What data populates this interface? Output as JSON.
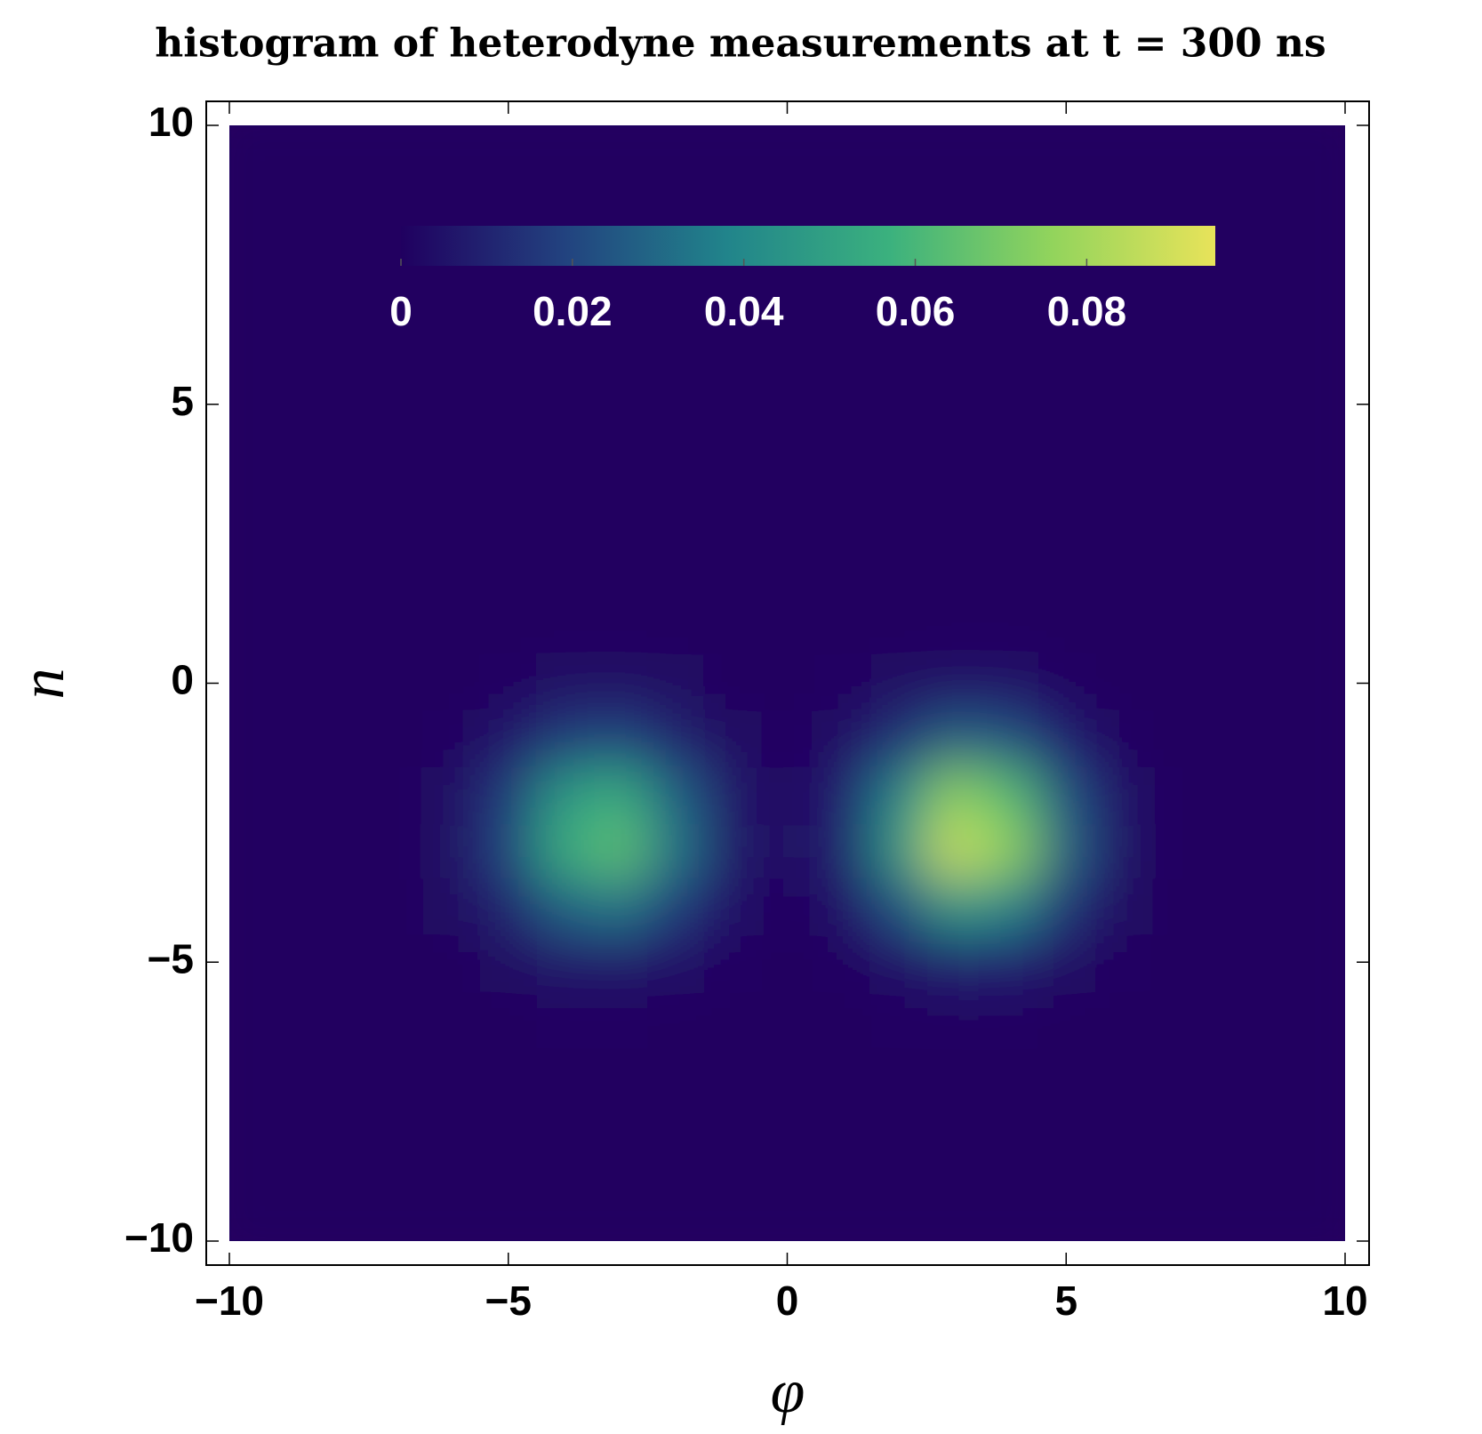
{
  "chart_data": {
    "type": "density",
    "title": "histogram of heterodyne measurements at t = 300 ns",
    "xlabel": "φ",
    "ylabel": "n",
    "x": [
      -10,
      -9,
      -8,
      -7,
      -6,
      -5,
      -4,
      -3,
      -2,
      -1,
      0,
      1,
      2,
      3,
      4,
      5,
      6,
      7,
      8,
      9,
      10
    ],
    "y": [
      -10,
      -9,
      -8,
      -7,
      -6,
      -5,
      -4,
      -3,
      -2,
      -1,
      0,
      1,
      2,
      3,
      4,
      5,
      6,
      7,
      8,
      9,
      10
    ],
    "z": [
      [
        0,
        0,
        0,
        0,
        0,
        0,
        0,
        0,
        0,
        0,
        0,
        0,
        0,
        0,
        0,
        0,
        0,
        0,
        0,
        0,
        0
      ],
      [
        0,
        0,
        0,
        0,
        0,
        0,
        0,
        0,
        0,
        0,
        0,
        0,
        0,
        0,
        0,
        0,
        0,
        0,
        0,
        0,
        0
      ],
      [
        0,
        0,
        0,
        0,
        0,
        0,
        0,
        0,
        0,
        0,
        0,
        0,
        0,
        0,
        0,
        0,
        0,
        0,
        0,
        0,
        0
      ],
      [
        0,
        0,
        0,
        0,
        0,
        0,
        0,
        0,
        0,
        0,
        0,
        0,
        0,
        0,
        0,
        0,
        0,
        0,
        0,
        0,
        0
      ],
      [
        0,
        0,
        0,
        0,
        0,
        0,
        0.001,
        0.001,
        0,
        0,
        0,
        0,
        0.001,
        0.001,
        0.001,
        0,
        0,
        0,
        0,
        0,
        0
      ],
      [
        0,
        0,
        0,
        0,
        0,
        0.002,
        0.006,
        0.007,
        0.004,
        0.001,
        0,
        0.001,
        0.005,
        0.01,
        0.009,
        0.003,
        0.001,
        0,
        0,
        0,
        0
      ],
      [
        0,
        0,
        0,
        0,
        0.002,
        0.01,
        0.028,
        0.033,
        0.017,
        0.004,
        0.001,
        0.005,
        0.023,
        0.045,
        0.038,
        0.014,
        0.002,
        0,
        0,
        0,
        0
      ],
      [
        0,
        0,
        0,
        0,
        0.003,
        0.02,
        0.055,
        0.065,
        0.033,
        0.007,
        0.002,
        0.01,
        0.045,
        0.088,
        0.075,
        0.027,
        0.004,
        0,
        0,
        0,
        0
      ],
      [
        0,
        0,
        0,
        0,
        0.003,
        0.017,
        0.047,
        0.055,
        0.028,
        0.006,
        0.001,
        0.009,
        0.038,
        0.075,
        0.063,
        0.023,
        0.004,
        0,
        0,
        0,
        0
      ],
      [
        0,
        0,
        0,
        0,
        0.001,
        0.006,
        0.017,
        0.02,
        0.01,
        0.002,
        0.001,
        0.003,
        0.014,
        0.027,
        0.023,
        0.009,
        0.001,
        0,
        0,
        0,
        0
      ],
      [
        0,
        0,
        0,
        0,
        0,
        0.001,
        0.003,
        0.003,
        0.002,
        0,
        0,
        0.001,
        0.002,
        0.004,
        0.004,
        0.001,
        0,
        0,
        0,
        0,
        0
      ],
      [
        0,
        0,
        0,
        0,
        0,
        0,
        0,
        0,
        0,
        0,
        0,
        0,
        0,
        0,
        0,
        0,
        0,
        0,
        0,
        0,
        0
      ],
      [
        0,
        0,
        0,
        0,
        0,
        0,
        0,
        0,
        0,
        0,
        0,
        0,
        0,
        0,
        0,
        0,
        0,
        0,
        0,
        0,
        0
      ],
      [
        0,
        0,
        0,
        0,
        0,
        0,
        0,
        0,
        0,
        0,
        0,
        0,
        0,
        0,
        0,
        0,
        0,
        0,
        0,
        0,
        0
      ],
      [
        0,
        0,
        0,
        0,
        0,
        0,
        0,
        0,
        0,
        0,
        0,
        0,
        0,
        0,
        0,
        0,
        0,
        0,
        0,
        0,
        0
      ],
      [
        0,
        0,
        0,
        0,
        0,
        0,
        0,
        0,
        0,
        0,
        0,
        0,
        0,
        0,
        0,
        0,
        0,
        0,
        0,
        0,
        0
      ],
      [
        0,
        0,
        0,
        0,
        0,
        0,
        0,
        0,
        0,
        0,
        0,
        0,
        0,
        0,
        0,
        0,
        0,
        0,
        0,
        0,
        0
      ],
      [
        0,
        0,
        0,
        0,
        0,
        0,
        0,
        0,
        0,
        0,
        0,
        0,
        0,
        0,
        0,
        0,
        0,
        0,
        0,
        0,
        0
      ],
      [
        0,
        0,
        0,
        0,
        0,
        0,
        0,
        0,
        0,
        0,
        0,
        0,
        0,
        0,
        0,
        0,
        0,
        0,
        0,
        0,
        0
      ],
      [
        0,
        0,
        0,
        0,
        0,
        0,
        0,
        0,
        0,
        0,
        0,
        0,
        0,
        0,
        0,
        0,
        0,
        0,
        0,
        0,
        0
      ],
      [
        0,
        0,
        0,
        0,
        0,
        0,
        0,
        0,
        0,
        0,
        0,
        0,
        0,
        0,
        0,
        0,
        0,
        0,
        0,
        0,
        0
      ]
    ],
    "xlim": [
      -10,
      10
    ],
    "ylim": [
      -10,
      10
    ],
    "xticks": [
      {
        "value": -10,
        "label": "−10"
      },
      {
        "value": -5,
        "label": "−5"
      },
      0,
      5,
      10
    ],
    "yticks": [
      {
        "value": -10,
        "label": "−10"
      },
      {
        "value": -5,
        "label": "−5"
      },
      0,
      5,
      10
    ],
    "colormap": [
      "#200060",
      "#22427f",
      "#21848b",
      "#3bb17e",
      "#92d45c",
      "#e8e35a"
    ],
    "clim": [
      0,
      0.095
    ],
    "cticks": [
      0,
      0.02,
      0.04,
      0.06,
      0.08
    ]
  }
}
